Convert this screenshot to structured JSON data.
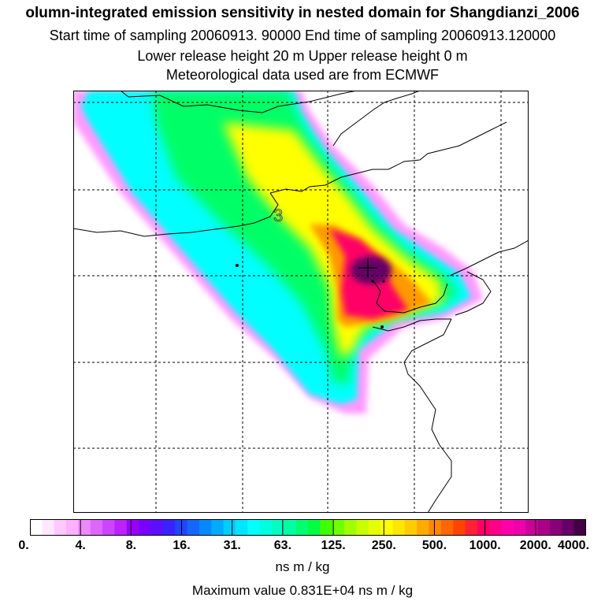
{
  "header": {
    "title": "olumn-integrated emission sensitivity in nested domain for Shangdianzi_2006",
    "line2": "Start time of sampling 20060913. 90000     End time of sampling 20060913.120000",
    "line3": "Lower release height   20 m          Upper release height    0 m",
    "line4": "Meteorological data used are from ECMWF"
  },
  "map": {
    "contour_label": "3",
    "grid": true,
    "plume_colors": [
      "#ff99ff",
      "#9900ff",
      "#0066ff",
      "#00ffff",
      "#00ff66",
      "#99ff00",
      "#ffff00",
      "#ff9900",
      "#ff0066",
      "#660066"
    ]
  },
  "colorbar": {
    "tick_labels": [
      "0.",
      "4.",
      "8.",
      "16.",
      "31.",
      "63.",
      "125.",
      "250.",
      "500.",
      "1000.",
      "2000.",
      "4000."
    ],
    "colors": [
      "#ffffff",
      "#ffe8ff",
      "#ffc8ff",
      "#ffb0ff",
      "#ee88ff",
      "#dd66ff",
      "#cc44ff",
      "#bb22ff",
      "#9900ff",
      "#7a00ff",
      "#5a10ff",
      "#3a22ff",
      "#2244ff",
      "#1466ff",
      "#0888ff",
      "#00aaff",
      "#00ccff",
      "#00e6ff",
      "#00ffff",
      "#00ffe0",
      "#00ffc0",
      "#00ffa0",
      "#00ff70",
      "#00ff40",
      "#40ff00",
      "#70ff00",
      "#a0ff00",
      "#c8ff00",
      "#e6ff00",
      "#ffff00",
      "#ffe600",
      "#ffcc00",
      "#ffaa00",
      "#ff8800",
      "#ff6600",
      "#ff4400",
      "#ff2233",
      "#ff0066",
      "#ff0088",
      "#ff00aa",
      "#ee00aa",
      "#cc0099",
      "#aa0088",
      "#880077",
      "#660066",
      "#440044"
    ]
  },
  "units": "ns m / kg",
  "max_value": "Maximum value  0.831E+04 ns m / kg"
}
